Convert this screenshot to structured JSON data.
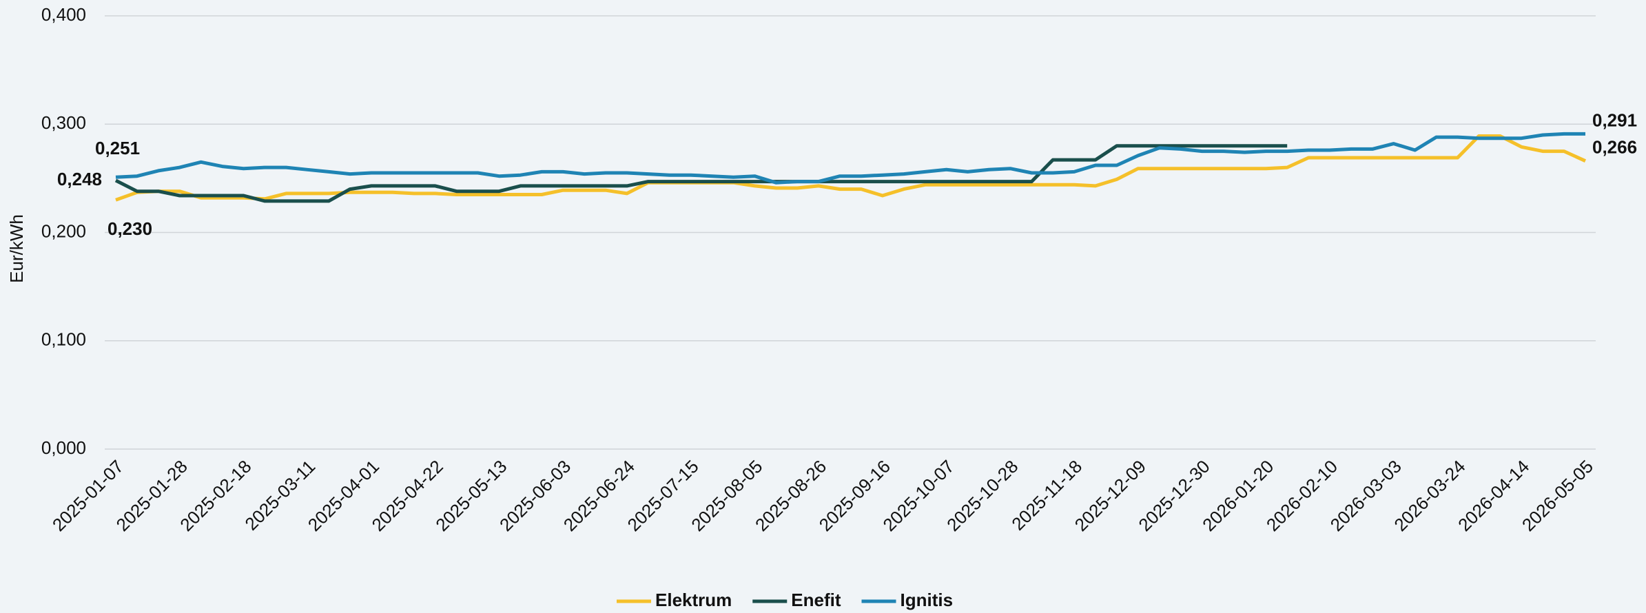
{
  "chart_data": {
    "type": "line",
    "y_label": "Eur/kWh",
    "categories": [
      "2025-01-07",
      null,
      null,
      "2025-01-28",
      null,
      null,
      "2025-02-18",
      null,
      null,
      "2025-03-11",
      null,
      null,
      "2025-04-01",
      null,
      null,
      "2025-04-22",
      null,
      null,
      "2025-05-13",
      null,
      null,
      "2025-06-03",
      null,
      null,
      "2025-06-24",
      null,
      null,
      "2025-07-15",
      null,
      null,
      "2025-08-05",
      null,
      null,
      "2025-08-26",
      null,
      null,
      "2025-09-16",
      null,
      null,
      "2025-10-07",
      null,
      null,
      "2025-10-28",
      null,
      null,
      "2025-11-18",
      null,
      null,
      "2025-12-09",
      null,
      null,
      "2025-12-30",
      null,
      null,
      "2026-01-20",
      null,
      null,
      "2026-02-10",
      null,
      null,
      "2026-03-03",
      null,
      null,
      "2026-03-24",
      null,
      null,
      "2026-04-14",
      null,
      null,
      "2026-05-05"
    ],
    "series": [
      {
        "name": "Elektrum",
        "color": "#f5c02a",
        "values": [
          0.23,
          0.237,
          0.238,
          0.238,
          0.232,
          0.232,
          0.232,
          0.231,
          0.236,
          0.236,
          0.236,
          0.237,
          0.237,
          0.237,
          0.236,
          0.236,
          0.235,
          0.235,
          0.235,
          0.235,
          0.235,
          0.239,
          0.239,
          0.239,
          0.236,
          0.246,
          0.246,
          0.246,
          0.246,
          0.246,
          0.243,
          0.241,
          0.241,
          0.243,
          0.24,
          0.24,
          0.234,
          0.24,
          0.244,
          0.244,
          0.244,
          0.244,
          0.244,
          0.244,
          0.244,
          0.244,
          0.243,
          0.249,
          0.259,
          0.259,
          0.259,
          0.259,
          0.259,
          0.259,
          0.259,
          0.26,
          0.269,
          0.269,
          0.269,
          0.269,
          0.269,
          0.269,
          0.269,
          0.269,
          0.289,
          0.289,
          0.279,
          0.275,
          0.275,
          0.266
        ],
        "value_labels": [
          "0,230",
          null,
          null,
          null,
          null,
          null,
          null,
          null,
          null,
          null,
          null,
          null,
          null,
          null,
          null,
          null,
          null,
          null,
          null,
          null,
          null,
          null,
          null,
          null,
          null,
          null,
          null,
          null,
          null,
          null,
          null,
          null,
          null,
          null,
          null,
          null,
          null,
          null,
          null,
          null,
          null,
          null,
          null,
          null,
          null,
          null,
          null,
          null,
          null,
          null,
          null,
          null,
          null,
          null,
          null,
          null,
          null,
          null,
          null,
          null,
          null,
          null,
          null,
          null,
          null,
          null,
          null,
          null,
          null,
          "0,266"
        ]
      },
      {
        "name": "Enefit",
        "color": "#1a4f4c",
        "values": [
          0.248,
          0.238,
          0.238,
          0.234,
          0.234,
          0.234,
          0.234,
          0.229,
          0.229,
          0.229,
          0.229,
          0.24,
          0.243,
          0.243,
          0.243,
          0.243,
          0.238,
          0.238,
          0.238,
          0.243,
          0.243,
          0.243,
          0.243,
          0.243,
          0.243,
          0.247,
          0.247,
          0.247,
          0.247,
          0.247,
          0.247,
          0.247,
          0.247,
          0.247,
          0.247,
          0.247,
          0.247,
          0.247,
          0.247,
          0.247,
          0.247,
          0.247,
          0.247,
          0.247,
          0.267,
          0.267,
          0.267,
          0.28,
          0.28,
          0.28,
          0.28,
          0.28,
          0.28,
          0.28,
          0.28,
          0.28,
          null,
          null,
          null,
          null,
          null,
          null,
          null,
          null,
          null,
          null,
          null,
          null,
          null,
          null
        ],
        "value_labels": [
          "0,248",
          null,
          null,
          null,
          null,
          null,
          null,
          null,
          null,
          null,
          null,
          null,
          null,
          null,
          null,
          null,
          null,
          null,
          null,
          null,
          null,
          null,
          null,
          null,
          null,
          null,
          null,
          null,
          null,
          null,
          null,
          null,
          null,
          null,
          null,
          null,
          null,
          null,
          null,
          null,
          null,
          null,
          null,
          null,
          null,
          null,
          null,
          null,
          null,
          null,
          null,
          null,
          null,
          null,
          null,
          null,
          null,
          null,
          null,
          null,
          null,
          null,
          null,
          null,
          null,
          null,
          null,
          null,
          null,
          null
        ]
      },
      {
        "name": "Ignitis",
        "color": "#1f84b4",
        "values": [
          0.251,
          0.252,
          0.257,
          0.26,
          0.265,
          0.261,
          0.259,
          0.26,
          0.26,
          0.258,
          0.256,
          0.254,
          0.255,
          0.255,
          0.255,
          0.255,
          0.255,
          0.255,
          0.252,
          0.253,
          0.256,
          0.256,
          0.254,
          0.255,
          0.255,
          0.254,
          0.253,
          0.253,
          0.252,
          0.251,
          0.252,
          0.246,
          0.247,
          0.247,
          0.252,
          0.252,
          0.253,
          0.254,
          0.256,
          0.258,
          0.256,
          0.258,
          0.259,
          0.255,
          0.255,
          0.256,
          0.262,
          0.262,
          0.271,
          0.278,
          0.277,
          0.275,
          0.275,
          0.274,
          0.275,
          0.275,
          0.276,
          0.276,
          0.277,
          0.277,
          0.282,
          0.276,
          0.288,
          0.288,
          0.287,
          0.287,
          0.287,
          0.29,
          0.291,
          0.291
        ],
        "value_labels": [
          "0,251",
          null,
          null,
          null,
          null,
          null,
          null,
          null,
          null,
          null,
          null,
          null,
          null,
          null,
          null,
          null,
          null,
          null,
          null,
          null,
          null,
          null,
          null,
          null,
          null,
          null,
          null,
          null,
          null,
          null,
          null,
          null,
          null,
          null,
          null,
          null,
          null,
          null,
          null,
          null,
          null,
          null,
          null,
          null,
          null,
          null,
          null,
          null,
          null,
          null,
          null,
          null,
          null,
          null,
          null,
          null,
          null,
          null,
          null,
          null,
          null,
          null,
          null,
          null,
          null,
          null,
          null,
          null,
          null,
          "0,291"
        ]
      }
    ],
    "ylim": [
      0,
      0.4
    ],
    "yticks": [
      {
        "value": 0,
        "label": "0,000"
      },
      {
        "value": 0.1,
        "label": "0,100"
      },
      {
        "value": 0.2,
        "label": "0,200"
      },
      {
        "value": 0.3,
        "label": "0,300"
      },
      {
        "value": 0.4,
        "label": "0,400"
      }
    ],
    "grid": true,
    "legend": "bottom"
  }
}
